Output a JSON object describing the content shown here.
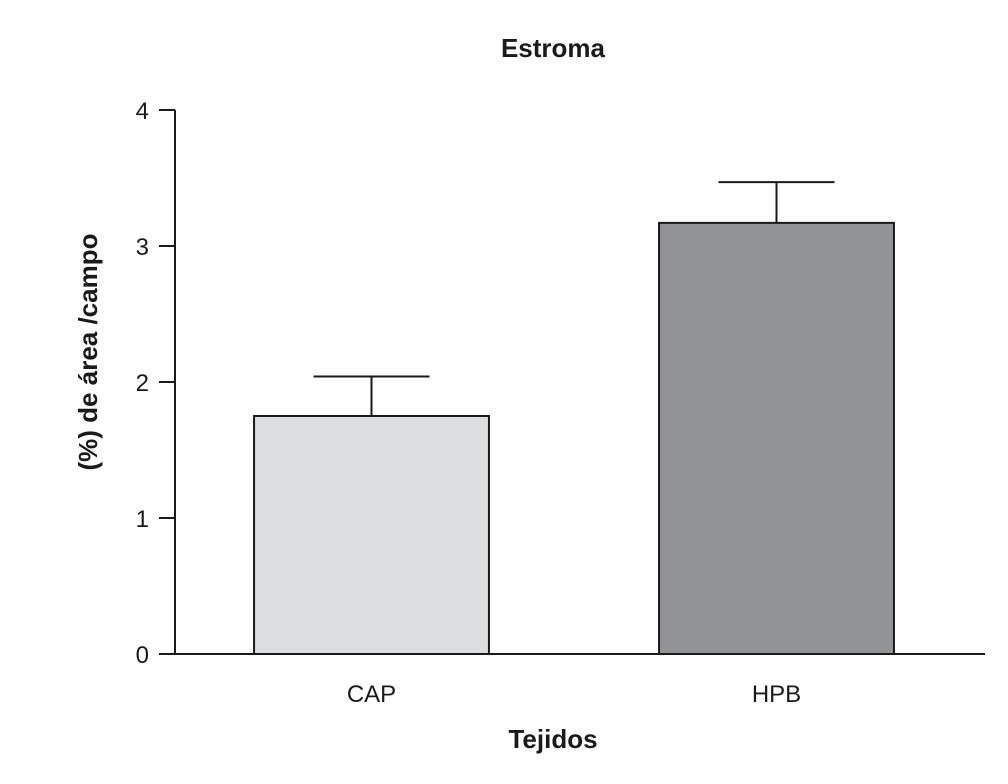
{
  "chart_data": {
    "type": "bar",
    "title": "Estroma",
    "xlabel": "Tejidos",
    "ylabel": "(%) de área /campo",
    "categories": [
      "CAP",
      "HPB"
    ],
    "values": [
      1.75,
      3.17
    ],
    "error_upper": [
      2.04,
      3.47
    ],
    "ylim": [
      0,
      4
    ],
    "yticks": [
      0,
      1,
      2,
      3,
      4
    ],
    "bar_colors": [
      "#dcdddf",
      "#929394"
    ],
    "grid": false,
    "legend": "none"
  }
}
